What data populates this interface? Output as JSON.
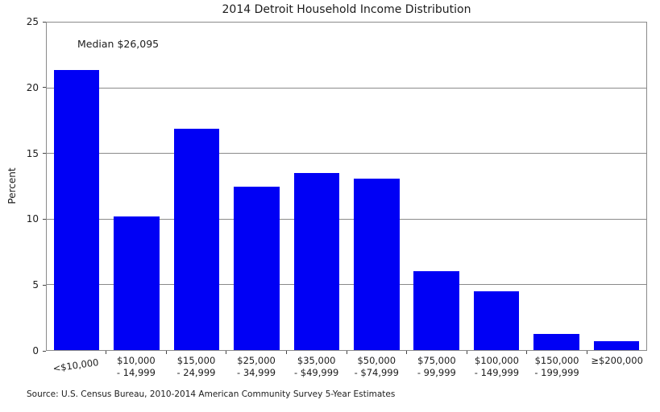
{
  "title": "2014 Detroit Household Income Distribution",
  "annotation": "Median $26,095",
  "ylabel": "Percent",
  "source": "Source: U.S. Census Bureau, 2010-2014 American Community Survey 5-Year Estimates",
  "colors": {
    "bar": "#0000f5",
    "grid": "#8a8a8a",
    "spine": "#8a8a8a",
    "text": "#1c1c1c"
  },
  "chart_data": {
    "type": "bar",
    "title": "2014 Detroit Household Income Distribution",
    "xlabel": "",
    "ylabel": "Percent",
    "ylim": [
      0,
      25
    ],
    "yticks": [
      0,
      5,
      10,
      15,
      20,
      25
    ],
    "grid": "horizontal gridlines at 5,10,15,20",
    "legend_position": "none",
    "annotation": "Median $26,095",
    "categories": [
      "<$10,000",
      "$10,000 - 14,999",
      "$15,000 - 24,999",
      "$25,000 - 34,999",
      "$35,000 - $49,999",
      "$50,000 - $74,999",
      "$75,000 - 99,999",
      "$100,000 - 149,999",
      "$150,000 - 199,999",
      "≥$200,000"
    ],
    "category_label_lines": [
      [
        "<$10,000"
      ],
      [
        "$10,000",
        "- 14,999"
      ],
      [
        "$15,000",
        "- 24,999"
      ],
      [
        "$25,000",
        "- 34,999"
      ],
      [
        "$35,000",
        "- $49,999"
      ],
      [
        "$50,000",
        "- $74,999"
      ],
      [
        "$75,000",
        "- 99,999"
      ],
      [
        "$100,000",
        "- 149,999"
      ],
      [
        "$150,000",
        "- 199,999"
      ],
      [
        "≥$200,000"
      ]
    ],
    "values": [
      21.4,
      10.2,
      16.9,
      12.5,
      13.5,
      13.1,
      6.0,
      4.5,
      1.2,
      0.7
    ]
  }
}
